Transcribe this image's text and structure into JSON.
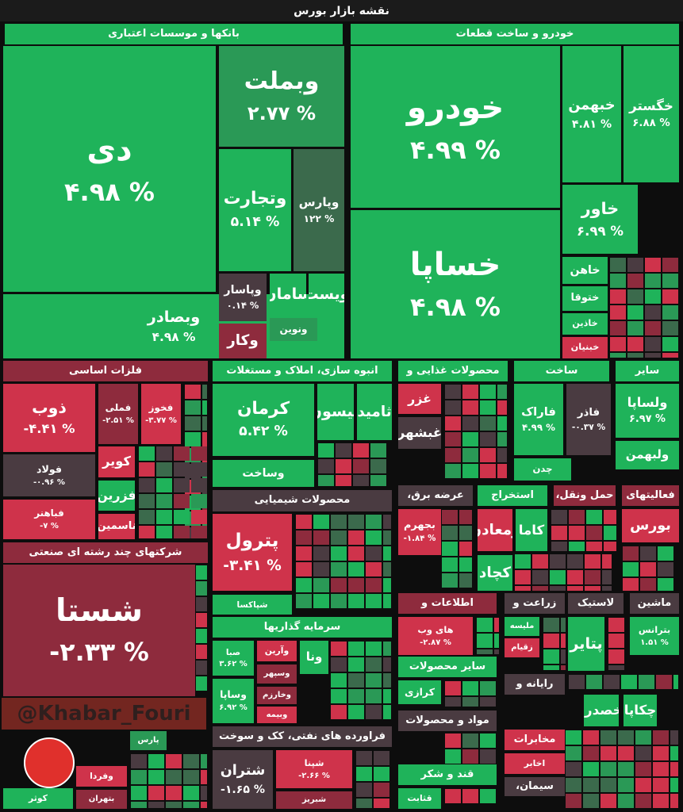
{
  "title": "نقشه بازار بورس",
  "watermark": "@Khabar_Fouri",
  "sectors": [
    {
      "name": "بانکها و موسسات اعتباری",
      "tiles": [
        {
          "name": "دی",
          "change": "۴.۹۸ %"
        },
        {
          "name": "وبملت",
          "change": "۲.۷۷ %"
        },
        {
          "name": "وتجارت",
          "change": "۵.۱۴ %"
        },
        {
          "name": "وپارس",
          "change": "۱۲۲ %"
        },
        {
          "name": "وبصادر",
          "change": "۴.۹۸ %"
        },
        {
          "name": "وپاسار",
          "change": "۰.۱۴ %"
        },
        {
          "name": "سامان"
        },
        {
          "name": "ویست"
        },
        {
          "name": "ونوین"
        },
        {
          "name": "وکار"
        }
      ]
    },
    {
      "name": "خودرو و ساخت قطعات",
      "tiles": [
        {
          "name": "خودرو",
          "change": "۴.۹۹ %"
        },
        {
          "name": "خساپا",
          "change": "۴.۹۸ %"
        },
        {
          "name": "خگستر",
          "change": "۶.۸۸ %"
        },
        {
          "name": "خبهمن",
          "change": "۴.۸۱ %"
        },
        {
          "name": "خاور",
          "change": "۶.۹۹ %"
        },
        {
          "name": "خاهن"
        },
        {
          "name": "ختوقا"
        },
        {
          "name": "خاذین"
        },
        {
          "name": "خبنیان"
        }
      ]
    },
    {
      "name": "فلزات اساسی",
      "tiles": [
        {
          "name": "ذوب",
          "change": "-۴.۴۱ %"
        },
        {
          "name": "فملی",
          "change": "-۲.۵۱ %"
        },
        {
          "name": "فخوز",
          "change": "-۳.۷۷ %"
        },
        {
          "name": "فولاد",
          "change": "-۰.۹۶ %"
        },
        {
          "name": "فباهنر",
          "change": "-۷ %"
        },
        {
          "name": "کویر"
        },
        {
          "name": "فزرین"
        },
        {
          "name": "ناسمین"
        }
      ]
    },
    {
      "name": "شرکتهای چند رشته ای صنعتی",
      "tiles": [
        {
          "name": "شستا",
          "change": "-۲.۳۳ %"
        },
        {
          "name": "وفردا"
        },
        {
          "name": "بتهران"
        },
        {
          "name": "پارس"
        },
        {
          "name": "کوثر"
        }
      ]
    },
    {
      "name": "انبوه سازی، املاک و مستغلات",
      "tiles": [
        {
          "name": "کرمان",
          "change": "۵.۴۲ %"
        },
        {
          "name": "کیسون"
        },
        {
          "name": "ثامید"
        },
        {
          "name": "وساخت"
        }
      ]
    },
    {
      "name": "محصولات غذایی و",
      "tiles": [
        {
          "name": "غزر"
        },
        {
          "name": "غبشهر"
        }
      ]
    },
    {
      "name": "ساخت",
      "tiles": [
        {
          "name": "فاراک",
          "change": "۴.۹۹ %"
        },
        {
          "name": "فاذر",
          "change": "-۰.۳۷ %"
        },
        {
          "name": "چدن"
        }
      ]
    },
    {
      "name": "سایر",
      "tiles": [
        {
          "name": "ولساپا",
          "change": "۶.۹۷ %"
        },
        {
          "name": "ولبهمن"
        }
      ]
    },
    {
      "name": "محصولات شیمیایی",
      "tiles": [
        {
          "name": "پترول",
          "change": "-۳.۴۱ %"
        },
        {
          "name": "شپاکسا"
        }
      ]
    },
    {
      "name": "عرضه برق،",
      "tiles": [
        {
          "name": "بجهرم",
          "change": "-۱.۸۴ %"
        }
      ]
    },
    {
      "name": "استخراج",
      "tiles": [
        {
          "name": "ومعادن"
        },
        {
          "name": "کاما"
        },
        {
          "name": "کچاد"
        }
      ]
    },
    {
      "name": "حمل ونقل،",
      "tiles": []
    },
    {
      "name": "فعالیتهای",
      "tiles": [
        {
          "name": "بورس"
        }
      ]
    },
    {
      "name": "سرمایه گذاریها",
      "tiles": [
        {
          "name": "صبا",
          "change": "۳.۶۲ %"
        },
        {
          "name": "وساپا",
          "change": "۶.۹۲ %"
        },
        {
          "name": "وآرین"
        },
        {
          "name": "وسپهر"
        },
        {
          "name": "وخارزم"
        },
        {
          "name": "وبیمه"
        },
        {
          "name": "ونا"
        }
      ]
    },
    {
      "name": "فراورده های نفتی، کک و سوخت",
      "tiles": [
        {
          "name": "شتران",
          "change": "-۱.۶۵ %"
        },
        {
          "name": "شپنا",
          "change": "-۲.۶۶ %"
        },
        {
          "name": "شبریز"
        }
      ]
    },
    {
      "name": "اطلاعات و",
      "tiles": [
        {
          "name": "های وب",
          "change": "-۲.۸۷ %"
        }
      ]
    },
    {
      "name": "سایر محصولات",
      "tiles": [
        {
          "name": "کرازی"
        }
      ]
    },
    {
      "name": "مواد و محصولات",
      "tiles": []
    },
    {
      "name": "قند و شکر",
      "tiles": [
        {
          "name": "قثابت"
        }
      ]
    },
    {
      "name": "زراعت و",
      "tiles": [
        {
          "name": "ملیسه"
        },
        {
          "name": "زقیام"
        }
      ]
    },
    {
      "name": "لاستیک",
      "tiles": [
        {
          "name": "پتایر"
        }
      ]
    },
    {
      "name": "ماشین",
      "tiles": [
        {
          "name": "بترانس",
          "change": "۱.۵۱ %"
        }
      ]
    },
    {
      "name": "رایانه و",
      "tiles": [
        {
          "name": "خصدرا"
        },
        {
          "name": "چکاپا"
        }
      ]
    },
    {
      "name": "مخابرات",
      "tiles": [
        {
          "name": "اخابر"
        }
      ]
    },
    {
      "name": "سیمان،",
      "tiles": []
    }
  ]
}
